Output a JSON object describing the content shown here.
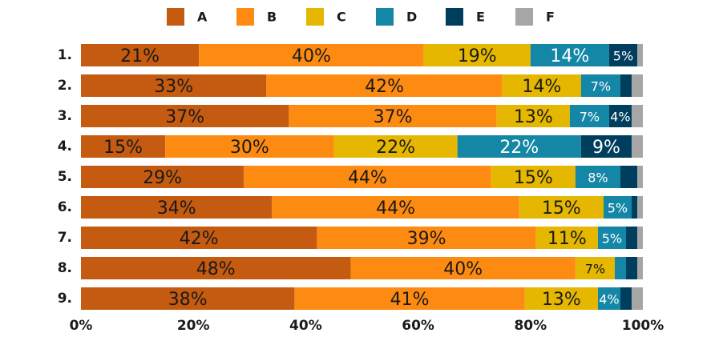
{
  "chart_data": {
    "type": "stacked-bar-horizontal",
    "categories": [
      "1.",
      "2.",
      "3.",
      "4.",
      "5.",
      "6.",
      "7.",
      "8.",
      "9."
    ],
    "series": [
      {
        "name": "A",
        "color": "#c55a11",
        "values": [
          21,
          33,
          37,
          15,
          29,
          34,
          42,
          48,
          38
        ],
        "value_labels": [
          "21%",
          "33%",
          "37%",
          "15%",
          "29%",
          "34%",
          "42%",
          "48%",
          "38%"
        ]
      },
      {
        "name": "B",
        "color": "#fd8b12",
        "values": [
          40,
          42,
          37,
          30,
          44,
          44,
          39,
          40,
          41
        ],
        "value_labels": [
          "40%",
          "42%",
          "37%",
          "30%",
          "44%",
          "44%",
          "39%",
          "40%",
          "41%"
        ]
      },
      {
        "name": "C",
        "color": "#e5b700",
        "values": [
          19,
          14,
          13,
          22,
          15,
          15,
          11,
          7,
          13
        ],
        "value_labels": [
          "19%",
          "14%",
          "13%",
          "22%",
          "15%",
          "15%",
          "11%",
          "7%",
          "13%"
        ]
      },
      {
        "name": "D",
        "color": "#1486a6",
        "values": [
          14,
          7,
          7,
          22,
          8,
          5,
          5,
          2,
          4
        ],
        "value_labels": [
          "14%",
          "7%",
          "7%",
          "22%",
          "8%",
          "5%",
          "5%",
          null,
          "4%"
        ]
      },
      {
        "name": "E",
        "color": "#003e5e",
        "values": [
          5,
          2,
          4,
          9,
          3,
          1,
          2,
          2,
          2
        ],
        "value_labels": [
          "5%",
          null,
          "4%",
          "9%",
          null,
          null,
          null,
          null,
          null
        ]
      },
      {
        "name": "F",
        "color": "#a6a6a6",
        "values": [
          1,
          2,
          2,
          2,
          1,
          1,
          1,
          1,
          2
        ],
        "value_labels": [
          null,
          null,
          null,
          null,
          null,
          null,
          null,
          null,
          null
        ]
      }
    ],
    "xlim": [
      0,
      100
    ],
    "xticks": [
      {
        "value": 0,
        "label": "0%"
      },
      {
        "value": 20,
        "label": "20%"
      },
      {
        "value": 40,
        "label": "40%"
      },
      {
        "value": 60,
        "label": "60%"
      },
      {
        "value": 80,
        "label": "80%"
      },
      {
        "value": 100,
        "label": "100%"
      }
    ],
    "legend": "top"
  }
}
